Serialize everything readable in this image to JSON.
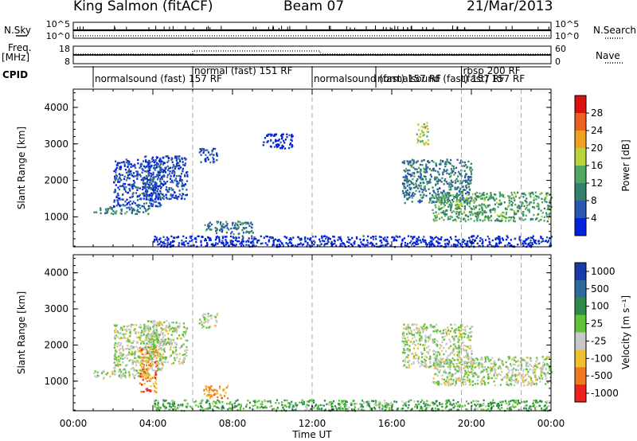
{
  "header": {
    "station": "King Salmon (fitACF)",
    "beam": "Beam 07",
    "date": "21/Mar/2013"
  },
  "left_labels": {
    "nsky": "N.Sky",
    "freq": "Freq.",
    "freq_unit": "[MHz]",
    "cpid": "CPID"
  },
  "right_labels": {
    "nsearch": "N.Search",
    "nave": "Nave"
  },
  "noise_ticks_left": [
    "10^5",
    "10^0"
  ],
  "noise_ticks_right": [
    "10^5",
    "10^0"
  ],
  "freq_ticks_left": [
    "18",
    "8"
  ],
  "nave_ticks_right": [
    "60",
    "0"
  ],
  "cpid_segments": [
    {
      "start": 1.0,
      "label": "normalsound (fast) 157 RF"
    },
    {
      "start": 6.0,
      "label": "normal (fast) 151 RF"
    },
    {
      "start": 12.0,
      "label": "normalsound (fast) 157 RF"
    },
    {
      "start": 15.2,
      "label": "normalsound (fast) 157 RF"
    },
    {
      "start": 19.5,
      "label": "rbsp 200 RF"
    },
    {
      "start": 19.5,
      "label": "(fast) 157 RF"
    }
  ],
  "chart_data": [
    {
      "type": "heatmap",
      "name": "power",
      "ylabel": "Slant Range [km]",
      "xlabel": "Time UT",
      "x_ticks": [
        "00:00",
        "04:00",
        "08:00",
        "12:00",
        "16:00",
        "20:00",
        "00:00"
      ],
      "xlim": [
        0,
        24
      ],
      "ylim": [
        180,
        4500
      ],
      "y_ticks": [
        1000,
        2000,
        3000,
        4000
      ],
      "colorbar_label": "Power [dB]",
      "colorbar_ticks": [
        "4",
        "8",
        "12",
        "16",
        "20",
        "24",
        "28"
      ],
      "colors": [
        "#0022dd",
        "#2b56b0",
        "#33806a",
        "#4fa860",
        "#b8d438",
        "#f0a020",
        "#ee6020",
        "#dd1010"
      ],
      "scatter_regions": [
        {
          "t": [
            1.0,
            3.8
          ],
          "r": [
            1100,
            1300
          ],
          "level": 2
        },
        {
          "t": [
            2.0,
            4.5
          ],
          "r": [
            1300,
            2600
          ],
          "level": 1
        },
        {
          "t": [
            3.5,
            5.7
          ],
          "r": [
            1500,
            2700
          ],
          "level": 1
        },
        {
          "t": [
            6.3,
            7.2
          ],
          "r": [
            2500,
            2900
          ],
          "level": 1
        },
        {
          "t": [
            6.5,
            9.0
          ],
          "r": [
            550,
            900
          ],
          "level": 2
        },
        {
          "t": [
            9.5,
            11.0
          ],
          "r": [
            2900,
            3300
          ],
          "level": 0
        },
        {
          "t": [
            4.0,
            24.0
          ],
          "r": [
            200,
            500
          ],
          "level": 0
        },
        {
          "t": [
            16.5,
            20.0
          ],
          "r": [
            1400,
            2600
          ],
          "level": 2
        },
        {
          "t": [
            18.0,
            24.0
          ],
          "r": [
            900,
            1700
          ],
          "level": 3
        },
        {
          "t": [
            17.2,
            17.8
          ],
          "r": [
            3000,
            3600
          ],
          "level": 4
        }
      ]
    },
    {
      "type": "heatmap",
      "name": "velocity",
      "ylabel": "Slant Range [km]",
      "xlabel": "Time UT",
      "x_ticks": [
        "00:00",
        "04:00",
        "08:00",
        "12:00",
        "16:00",
        "20:00",
        "00:00"
      ],
      "xlim": [
        0,
        24
      ],
      "ylim": [
        180,
        4500
      ],
      "y_ticks": [
        1000,
        2000,
        3000,
        4000
      ],
      "colorbar_label": "Velocity [m s⁻¹]",
      "colorbar_ticks": [
        "1000",
        "500",
        "100",
        "25",
        "-25",
        "-100",
        "-500",
        "-1000"
      ],
      "colors": [
        "#1a3aa8",
        "#2e6a9a",
        "#2f8a4a",
        "#5fc23a",
        "#c8c8c8",
        "#f0c030",
        "#f07a20",
        "#ee2020"
      ],
      "scatter_regions": [
        {
          "t": [
            1.0,
            3.8
          ],
          "r": [
            1100,
            1300
          ],
          "level": 4
        },
        {
          "t": [
            2.0,
            4.5
          ],
          "r": [
            1300,
            2600
          ],
          "level": 4
        },
        {
          "t": [
            3.3,
            4.2
          ],
          "r": [
            700,
            2000
          ],
          "level": 6
        },
        {
          "t": [
            3.5,
            5.7
          ],
          "r": [
            1500,
            2700
          ],
          "level": 4
        },
        {
          "t": [
            6.5,
            7.8
          ],
          "r": [
            550,
            900
          ],
          "level": 6
        },
        {
          "t": [
            6.3,
            7.2
          ],
          "r": [
            2500,
            2900
          ],
          "level": 4
        },
        {
          "t": [
            4.0,
            24.0
          ],
          "r": [
            200,
            500
          ],
          "level": 3
        },
        {
          "t": [
            16.5,
            20.0
          ],
          "r": [
            1400,
            2600
          ],
          "level": 4
        },
        {
          "t": [
            18.0,
            24.0
          ],
          "r": [
            900,
            1700
          ],
          "level": 4
        }
      ]
    }
  ]
}
